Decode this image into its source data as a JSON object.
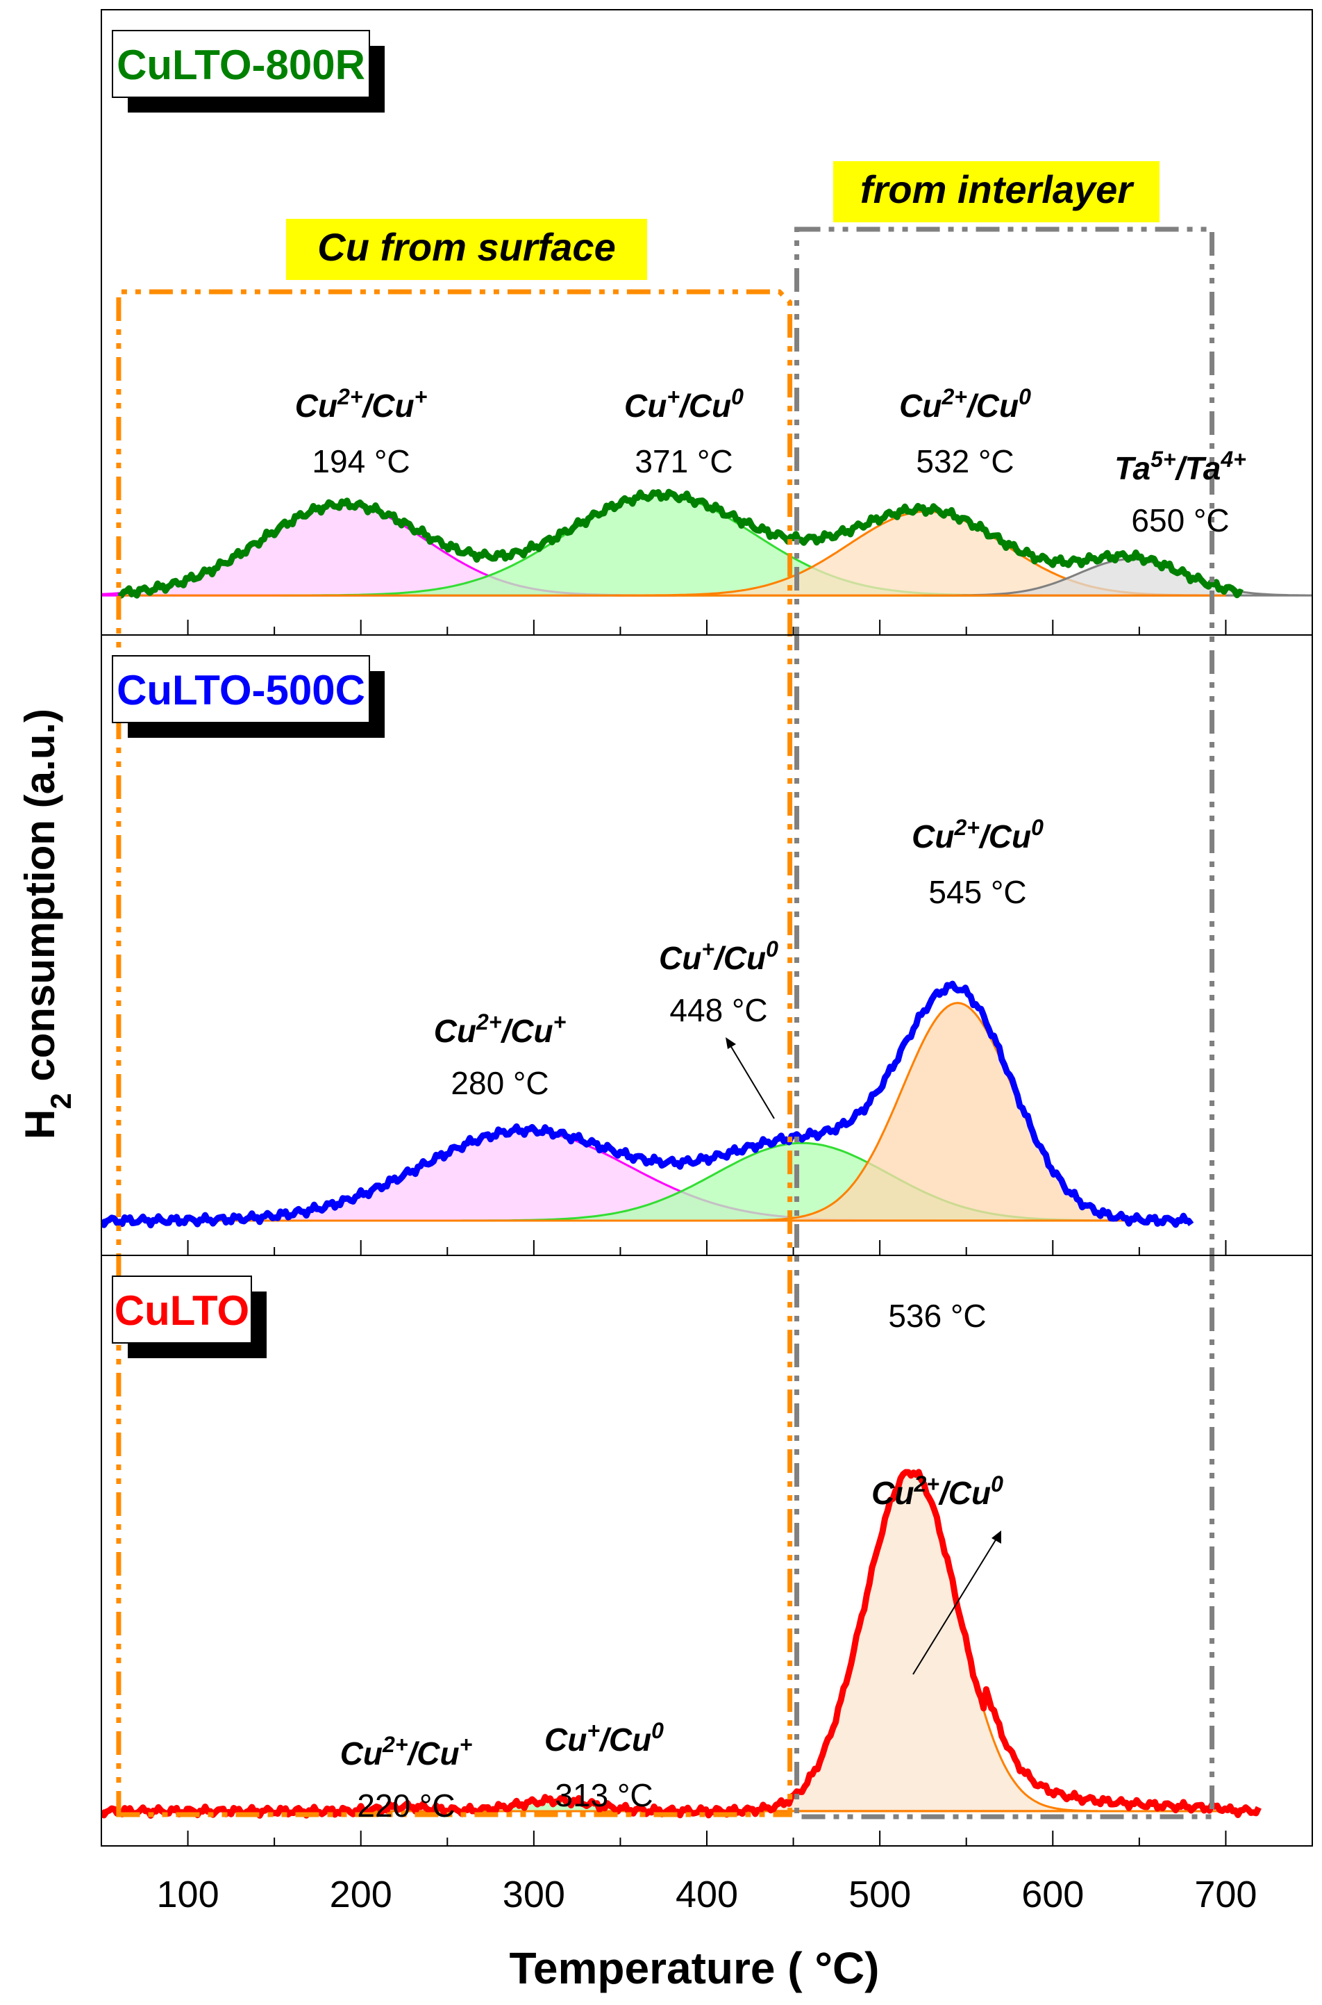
{
  "chart_data": {
    "type": "line",
    "xlabel": "Temperature ( °C)",
    "ylabel_main": "H",
    "ylabel_sub": "2",
    "ylabel_rest": " consumption (a.u.)",
    "xlim": [
      50,
      750
    ],
    "x_ticks": [
      100,
      200,
      300,
      400,
      500,
      600,
      700
    ],
    "region_labels": {
      "surface": "Cu from surface",
      "interlayer": "from interlayer"
    },
    "region_bounds": {
      "surface": [
        60,
        448
      ],
      "interlayer": [
        452,
        688
      ]
    },
    "colors": {
      "surface_box": "#FF8C00",
      "interlayer_box": "#808080",
      "label_bg": "#FFFF00",
      "peak_pink": "#FF00FF",
      "peak_green": "#00CC00",
      "peak_orange": "#FF8000",
      "peak_gray": "#808080"
    },
    "panels": [
      {
        "id": "CuLTO-800R",
        "name": "CuLTO-800R",
        "color": "#008000",
        "ylim": [
          0,
          5.6
        ],
        "data_range": [
          60,
          710
        ],
        "baseline": 0.05,
        "peaks": [
          {
            "center": 190,
            "height": 0.95,
            "width": 48,
            "color": "#FF00FF",
            "fill": "#FFCCFF"
          },
          {
            "center": 373,
            "height": 1.05,
            "width": 55,
            "color": "#33DD33",
            "fill": "#B2FFB2"
          },
          {
            "center": 527,
            "height": 0.88,
            "width": 45,
            "color": "#FF8000",
            "fill": "#FFE0C0"
          },
          {
            "center": 645,
            "height": 0.38,
            "width": 30,
            "color": "#808080",
            "fill": "#DDDDDD"
          }
        ],
        "annotations": [
          {
            "species": [
              "Cu",
              "2+",
              "/Cu",
              "+"
            ],
            "temp": "194 °C"
          },
          {
            "species": [
              "Cu",
              "+",
              "/Cu",
              "0"
            ],
            "temp": "371 °C"
          },
          {
            "species": [
              "Cu",
              "2+",
              "/Cu",
              "0"
            ],
            "temp": "532 °C"
          },
          {
            "species": [
              "Ta",
              "5+",
              "/Ta",
              "4+"
            ],
            "temp": "650 °C"
          }
        ]
      },
      {
        "id": "CuLTO-500C",
        "name": "CuLTO-500C",
        "color": "#0000FF",
        "ylim": [
          0,
          5.6
        ],
        "data_range": [
          50,
          680
        ],
        "baseline": 0.0,
        "peaks": [
          {
            "center": 295,
            "height": 0.95,
            "width": 60,
            "color": "#FF00FF",
            "fill": "#FFCCFF"
          },
          {
            "center": 455,
            "height": 0.82,
            "width": 50,
            "color": "#33DD33",
            "fill": "#B2FFB2"
          },
          {
            "center": 545,
            "height": 2.3,
            "width": 32,
            "color": "#FF8000",
            "fill": "#FFD8B0"
          }
        ],
        "annotations": [
          {
            "species": [
              "Cu",
              "2+",
              "/Cu",
              "+"
            ],
            "temp": "280  °C"
          },
          {
            "species": [
              "Cu",
              "+",
              "/Cu",
              "0"
            ],
            "temp": "448 °C"
          },
          {
            "species": [
              "Cu",
              "2+",
              "/Cu",
              "0"
            ],
            "temp": "545 °C"
          }
        ]
      },
      {
        "id": "CuLTO",
        "name": "CuLTO",
        "color": "#FF0000",
        "ylim": [
          0,
          5.6
        ],
        "data_range": [
          50,
          720
        ],
        "baseline": 0.0,
        "peaks": [
          {
            "center": 227,
            "height": 0.05,
            "width": 14,
            "color": "#FF00FF",
            "fill": "#FFCCFF"
          },
          {
            "center": 313,
            "height": 0.12,
            "width": 22,
            "color": "#33DD33",
            "fill": "#B2FFB2"
          },
          {
            "center": 518,
            "height": 3.8,
            "width": 27,
            "color": "#FF8000",
            "fill": "#FAE5D0"
          }
        ],
        "annotations": [
          {
            "species": [
              "Cu",
              "2+",
              "/Cu",
              "+"
            ],
            "temp": "220 °C"
          },
          {
            "species": [
              "Cu",
              "+",
              "/Cu",
              "0"
            ],
            "temp": "313 °C"
          },
          {
            "species": [
              "Cu",
              "2+",
              "/Cu",
              "0"
            ],
            "temp": "536 °C"
          }
        ]
      }
    ]
  }
}
